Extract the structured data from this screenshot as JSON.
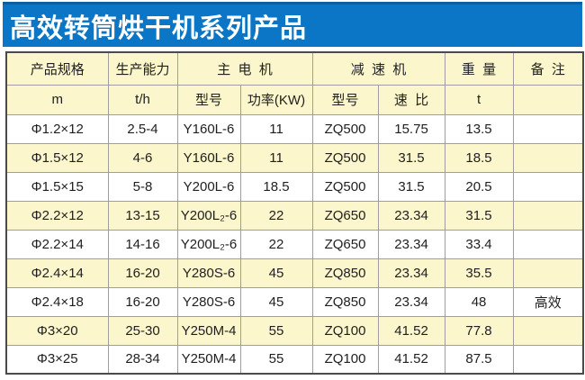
{
  "title": "高效转筒烘干机系列产品",
  "colors": {
    "title_bg": "#0b76c5",
    "title_text": "#ffffff",
    "header_bg": "#fbf6cb",
    "row_odd_bg": "#ffffff",
    "row_even_bg": "#fbf6cb",
    "outer_border": "#4a4a4a",
    "inner_border": "#9e9e9e",
    "cell_text": "#1f1f1f"
  },
  "table": {
    "group_headers": {
      "product_spec": "产品规格",
      "capacity": "生产能力",
      "main_motor": "主电机",
      "reducer": "减速机",
      "weight": "重量",
      "remark": "备注"
    },
    "unit_headers": [
      "m",
      "t/h",
      "型号",
      "功率(KW)",
      "型号",
      "速比",
      "t",
      ""
    ],
    "rows": [
      [
        "Φ1.2×12",
        "2.5-4",
        "Y160L-6",
        "11",
        "ZQ500",
        "15.75",
        "13.5",
        ""
      ],
      [
        "Φ1.5×12",
        "4-6",
        "Y160L-6",
        "11",
        "ZQ500",
        "31.5",
        "18.5",
        ""
      ],
      [
        "Φ1.5×15",
        "5-8",
        "Y200L-6",
        "18.5",
        "ZQ500",
        "31.5",
        "20.5",
        ""
      ],
      [
        "Φ2.2×12",
        "13-15",
        "Y200L₂-6",
        "22",
        "ZQ650",
        "23.34",
        "31.5",
        ""
      ],
      [
        "Φ2.2×14",
        "14-16",
        "Y200L₂-6",
        "22",
        "ZQ650",
        "23.34",
        "33.4",
        ""
      ],
      [
        "Φ2.4×14",
        "16-20",
        "Y280S-6",
        "45",
        "ZQ850",
        "23.34",
        "35.5",
        ""
      ],
      [
        "Φ2.4×18",
        "16-20",
        "Y280S-6",
        "45",
        "ZQ850",
        "23.34",
        "48",
        "高效"
      ],
      [
        "Φ3×20",
        "25-30",
        "Y250M-4",
        "55",
        "ZQ100",
        "41.52",
        "77.8",
        ""
      ],
      [
        "Φ3×25",
        "28-34",
        "Y250M-4",
        "55",
        "ZQ100",
        "41.52",
        "87.5",
        ""
      ]
    ]
  }
}
